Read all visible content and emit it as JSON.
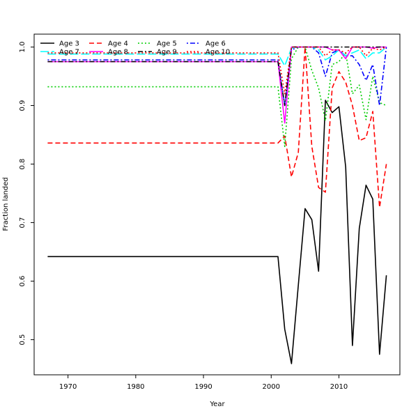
{
  "chart_data": {
    "type": "line",
    "title": "",
    "xlabel": "Year",
    "ylabel": "Fraction landed",
    "xlim": [
      1965,
      2019
    ],
    "ylim": [
      0.44,
      1.022
    ],
    "x_ticks": [
      1970,
      1980,
      1990,
      2000,
      2010
    ],
    "y_ticks": [
      0.5,
      0.6,
      0.7,
      0.8,
      0.9,
      1.0
    ],
    "x_tick_labels": [
      "1970",
      "1980",
      "1990",
      "2000",
      "2010"
    ],
    "y_tick_labels": [
      "0.5",
      "0.6",
      "0.7",
      "0.8",
      "0.9",
      "1.0"
    ],
    "legend_position": "top-left",
    "legend_columns": 4,
    "grid": false,
    "x": [
      1967,
      2001,
      2002,
      2003,
      2004,
      2005,
      2006,
      2007,
      2008,
      2009,
      2010,
      2011,
      2012,
      2013,
      2014,
      2015,
      2016,
      2017
    ],
    "series": [
      {
        "name": "Age 3",
        "color": "#000000",
        "dash": "solid",
        "values": [
          0.642,
          0.642,
          0.518,
          0.459,
          0.593,
          0.724,
          0.705,
          0.617,
          0.909,
          0.888,
          0.898,
          0.795,
          0.49,
          0.69,
          0.764,
          0.74,
          0.475,
          0.61
        ]
      },
      {
        "name": "Age 4",
        "color": "#ff0000",
        "dash": "dashed",
        "values": [
          0.836,
          0.836,
          0.848,
          0.778,
          0.82,
          1.0,
          0.83,
          0.76,
          0.752,
          0.93,
          0.958,
          0.94,
          0.9,
          0.84,
          0.845,
          0.89,
          0.726,
          0.8
        ]
      },
      {
        "name": "Age 5",
        "color": "#00cd00",
        "dash": "dotted",
        "values": [
          0.932,
          0.932,
          0.83,
          0.98,
          1.0,
          1.0,
          0.96,
          0.93,
          0.874,
          0.97,
          0.975,
          0.99,
          0.92,
          0.935,
          0.876,
          0.95,
          0.905,
          0.9
        ]
      },
      {
        "name": "Age 6",
        "color": "#0000ff",
        "dash": "dashdot",
        "values": [
          0.978,
          0.978,
          0.9,
          0.995,
          1.0,
          1.0,
          1.0,
          0.99,
          0.95,
          0.99,
          0.995,
          0.985,
          0.985,
          0.97,
          0.943,
          0.97,
          0.9,
          1.0
        ]
      },
      {
        "name": "Age 7",
        "color": "#00ffff",
        "dash": "longdash",
        "values": [
          0.988,
          0.988,
          0.968,
          0.998,
          1.0,
          1.0,
          1.0,
          0.995,
          0.978,
          0.985,
          0.995,
          0.985,
          0.99,
          0.995,
          0.98,
          0.99,
          0.99,
          1.0
        ]
      },
      {
        "name": "Age 8",
        "color": "#ff00ff",
        "dash": "solid",
        "values": [
          0.975,
          0.975,
          0.87,
          1.0,
          1.0,
          1.0,
          1.0,
          1.0,
          1.0,
          0.995,
          0.995,
          0.98,
          1.0,
          1.0,
          1.0,
          0.998,
          1.0,
          1.0
        ]
      },
      {
        "name": "Age 9",
        "color": "#000000",
        "dash": "twodash",
        "values": [
          0.975,
          0.975,
          0.9,
          1.0,
          1.0,
          1.0,
          1.0,
          1.0,
          1.0,
          1.0,
          1.0,
          1.0,
          1.0,
          1.0,
          1.0,
          1.0,
          1.0,
          1.0
        ]
      },
      {
        "name": "Age 10",
        "color": "#ff0000",
        "dash": "dotted",
        "values": [
          0.99,
          0.99,
          0.92,
          1.0,
          1.0,
          1.0,
          1.0,
          1.0,
          0.985,
          0.995,
          0.995,
          0.99,
          1.0,
          1.0,
          0.985,
          0.998,
          0.995,
          1.0
        ]
      }
    ]
  }
}
